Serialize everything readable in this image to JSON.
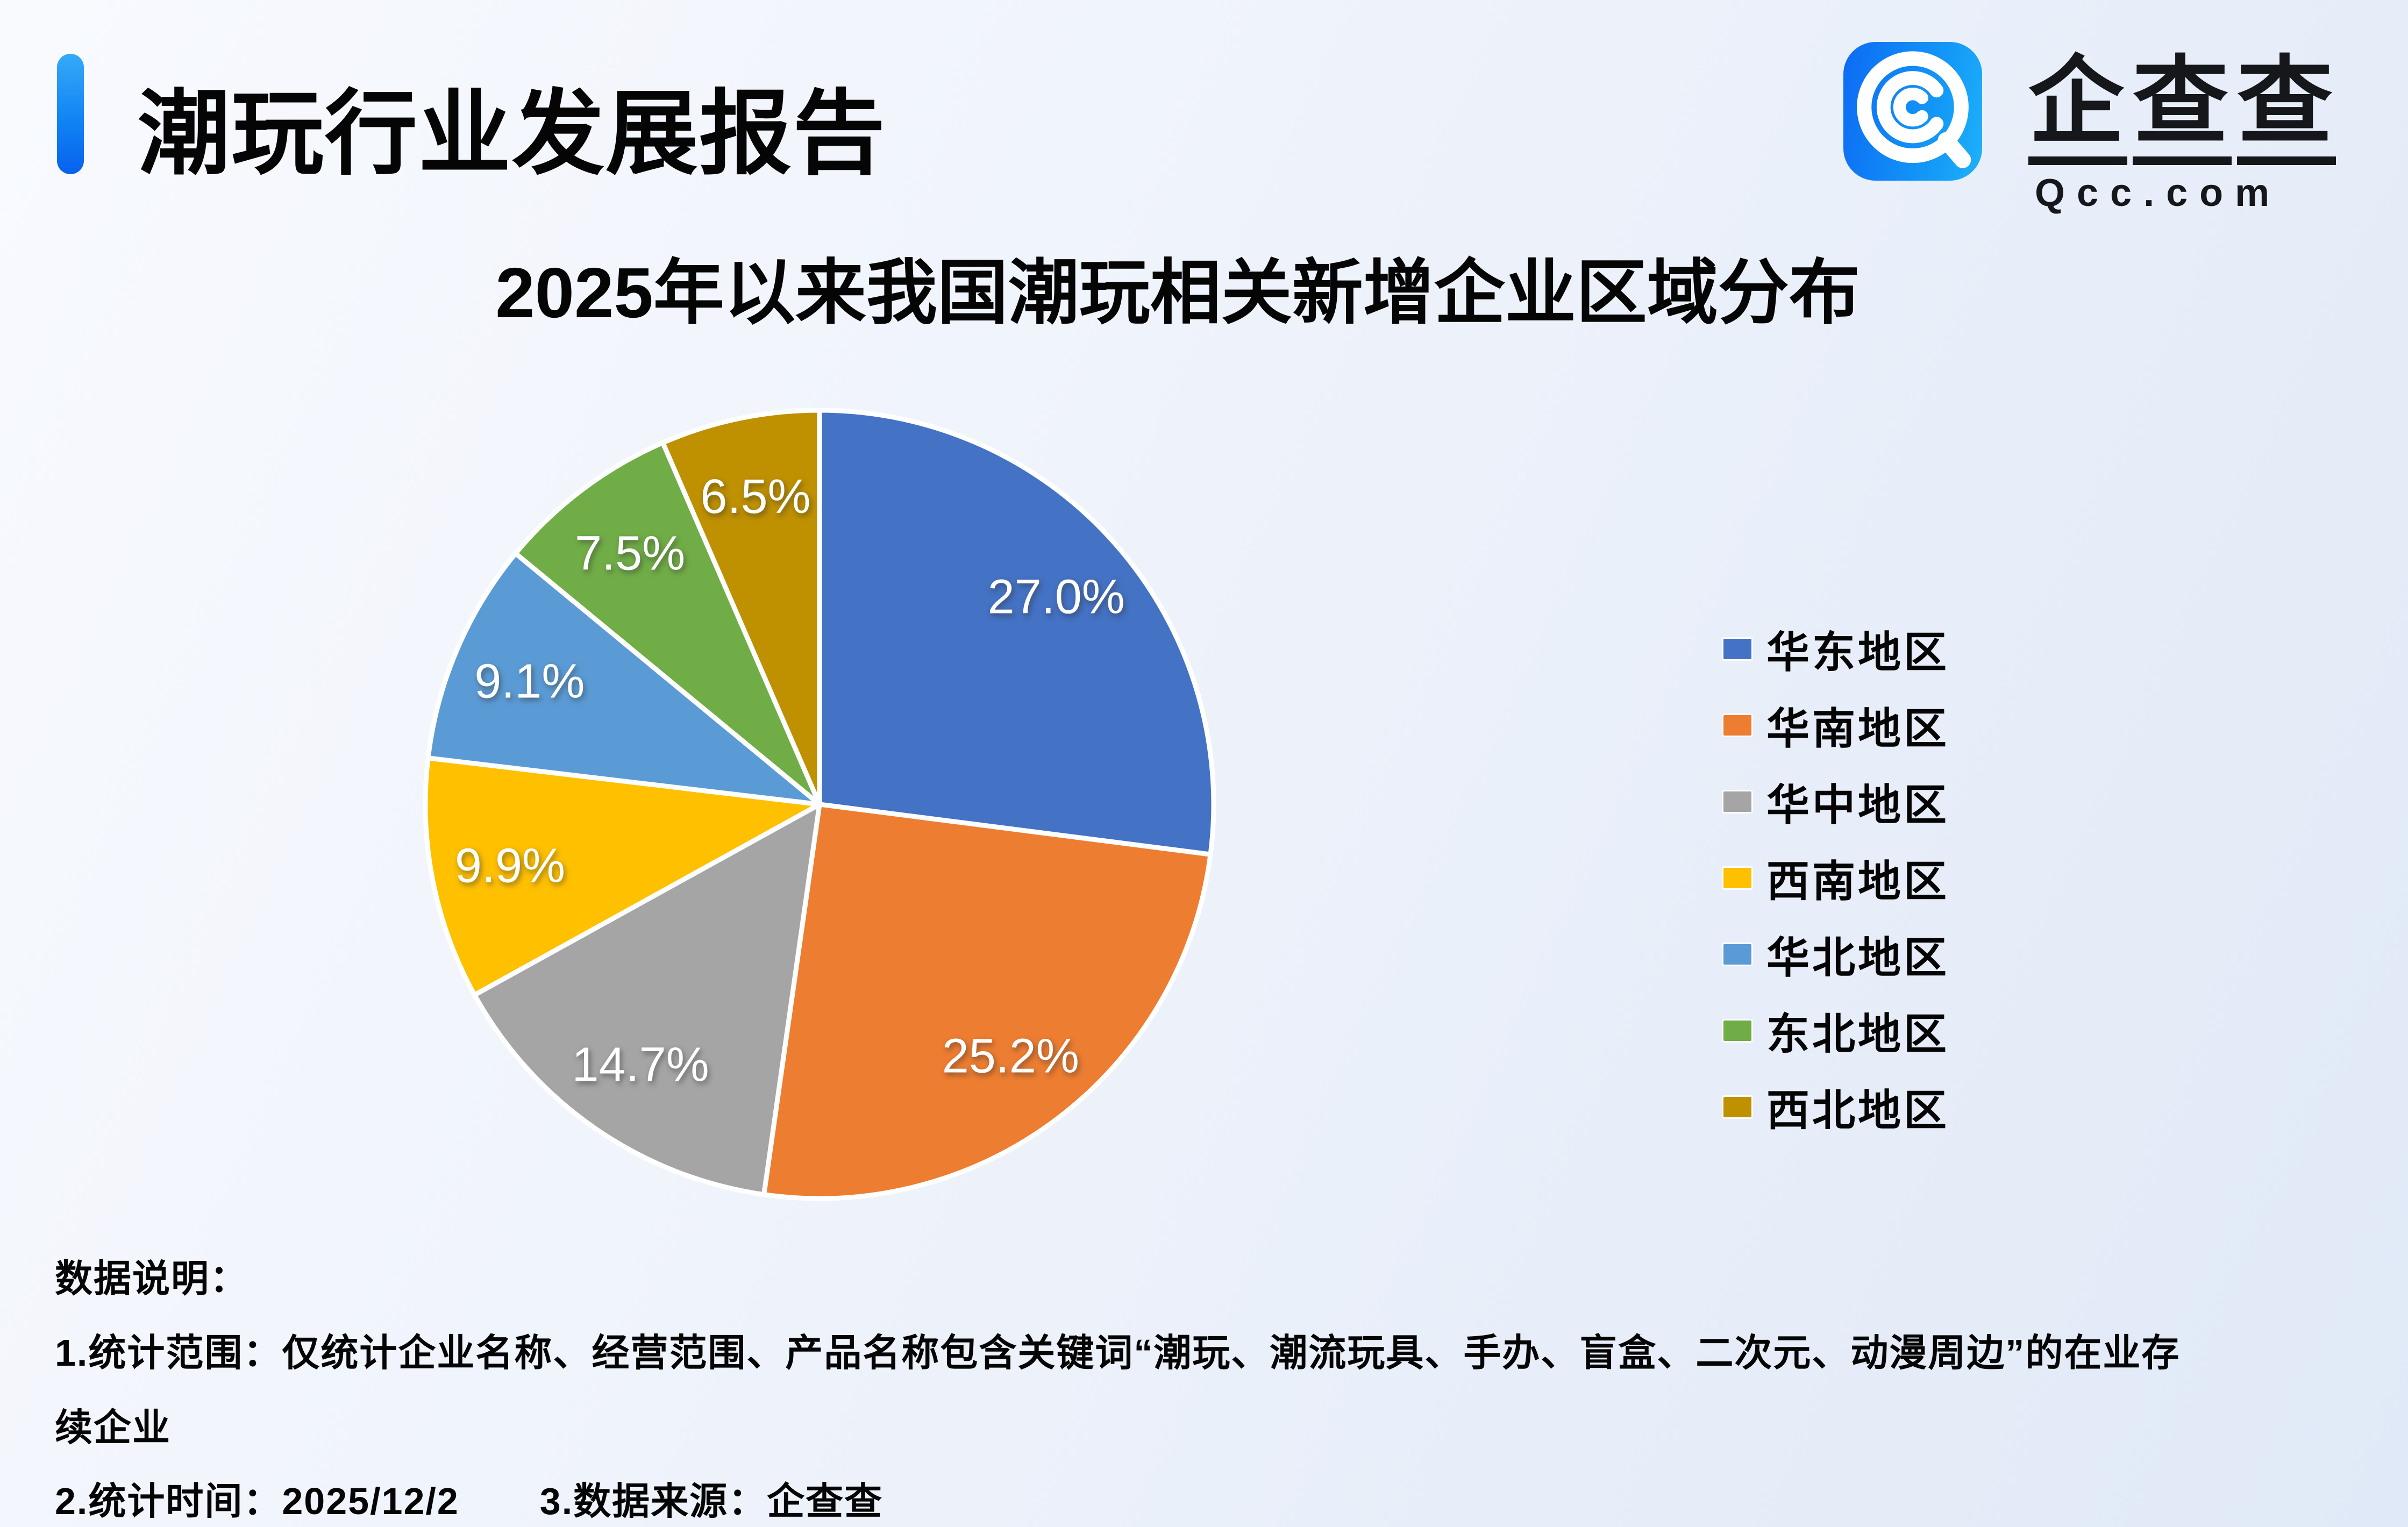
{
  "header": {
    "title": "潮玩行业发展报告"
  },
  "logo": {
    "icon": "qcc-magnifier-icon",
    "brand": "企查查",
    "brand_chars": [
      "企",
      "查",
      "查"
    ],
    "domain": "Qcc.com"
  },
  "chart_title": "2025年以来我国潮玩相关新增企业区域分布",
  "chart_data": {
    "type": "pie",
    "title": "2025年以来我国潮玩相关新增企业区域分布",
    "categories": [
      "华东地区",
      "华南地区",
      "华中地区",
      "西南地区",
      "华北地区",
      "东北地区",
      "西北地区"
    ],
    "values": [
      27.0,
      25.2,
      14.7,
      9.9,
      9.1,
      7.5,
      6.5
    ],
    "labels": [
      "27.0%",
      "25.2%",
      "14.7%",
      "9.9%",
      "9.1%",
      "7.5%",
      "6.5%"
    ],
    "colors": [
      "#4472C4",
      "#ED7D31",
      "#A5A5A5",
      "#FFC000",
      "#5B9BD5",
      "#70AD47",
      "#BF9000"
    ],
    "start_angle_deg": 0,
    "direction": "clockwise",
    "slice_border_color": "#FFFFFF",
    "label_color": "#FFFFFF",
    "legend_position": "right"
  },
  "notes": {
    "heading": "数据说明：",
    "line1": "1.统计范围：仅统计企业名称、经营范围、产品名称包含关键词“潮玩、潮流玩具、手办、盲盒、二次元、动漫周边”的在业存",
    "line2": "续企业",
    "line3_part1": "2.统计时间：2025/12/2",
    "line3_part2": "3.数据来源：企查查"
  }
}
